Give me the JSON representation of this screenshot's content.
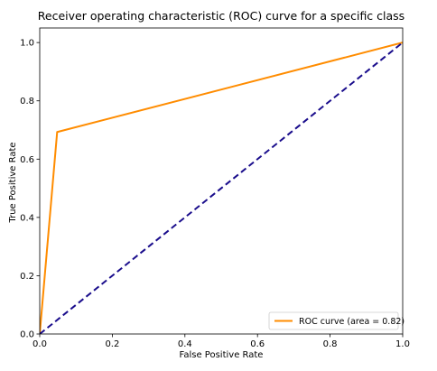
{
  "chart_data": {
    "type": "line",
    "title": "Receiver operating characteristic (ROC) curve for a specific class",
    "xlabel": "False Positive Rate",
    "ylabel": "True Positive Rate",
    "xlim": [
      0.0,
      1.0
    ],
    "ylim": [
      0.0,
      1.05
    ],
    "xticks": [
      "0.0",
      "0.2",
      "0.4",
      "0.6",
      "0.8",
      "1.0"
    ],
    "yticks": [
      "0.0",
      "0.2",
      "0.4",
      "0.6",
      "0.8",
      "1.0"
    ],
    "grid": false,
    "legend_position": "lower right",
    "series": [
      {
        "name": "ROC curve (area = 0.82)",
        "color": "#ff8c00",
        "style": "solid",
        "x": [
          0.0,
          0.048,
          1.0
        ],
        "y": [
          0.0,
          0.693,
          1.0
        ]
      },
      {
        "color": "#1a0d8c",
        "style": "dashed",
        "x": [
          0.0,
          1.0
        ],
        "y": [
          0.0,
          1.0
        ]
      }
    ]
  }
}
